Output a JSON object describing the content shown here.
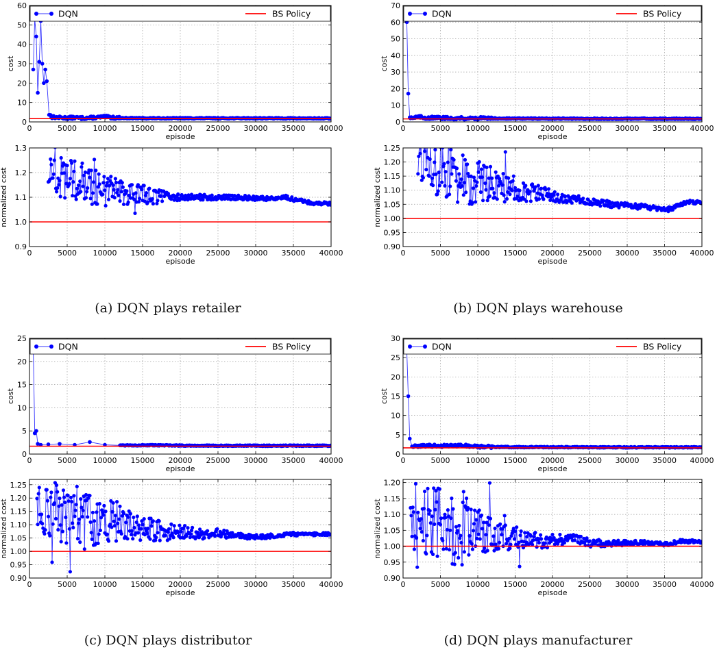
{
  "legend": {
    "dqn": "DQN",
    "bs": "BS Policy"
  },
  "colors": {
    "dqn": "#0000ff",
    "dqn_line": "#3535ff",
    "bs": "#ff0000"
  },
  "captions": [
    "(a) DQN plays retailer",
    "(b) DQN plays warehouse",
    "(c) DQN plays distributor",
    "(d) DQN plays manufacturer"
  ],
  "chart_data": [
    {
      "type": "line",
      "panel": "a-top",
      "xlabel": "episode",
      "ylabel": "cost",
      "xlim": [
        0,
        40000
      ],
      "ylim": [
        0,
        60
      ],
      "xticks": [
        "0",
        "5000",
        "10000",
        "15000",
        "20000",
        "25000",
        "30000",
        "35000",
        "40000"
      ],
      "yticks": [
        "0",
        "10",
        "20",
        "30",
        "40",
        "50",
        "60"
      ],
      "grid": true,
      "legend": "top",
      "series": [
        {
          "name": "DQN",
          "x": [
            500,
            700,
            900,
            1100,
            1300,
            1500,
            1700,
            1900,
            2100,
            2300,
            2600,
            3000,
            4000,
            5000,
            6000,
            7000,
            8000,
            10000,
            12000,
            15000,
            20000,
            25000,
            30000,
            35000,
            40000
          ],
          "y": [
            27,
            53,
            44,
            15,
            31,
            52,
            30,
            20,
            27,
            21,
            4,
            2.5,
            2.2,
            2.1,
            2.2,
            2.0,
            2.1,
            2.6,
            2.0,
            1.9,
            1.9,
            1.9,
            1.9,
            1.85,
            1.8
          ]
        },
        {
          "name": "BS Policy",
          "x": [
            0,
            40000
          ],
          "y": [
            1.7,
            1.7
          ]
        }
      ]
    },
    {
      "type": "line",
      "panel": "a-bottom",
      "xlabel": "episode",
      "ylabel": "normalized cost",
      "xlim": [
        0,
        40000
      ],
      "ylim": [
        0.9,
        1.3
      ],
      "xticks": [
        "0",
        "5000",
        "10000",
        "15000",
        "20000",
        "25000",
        "30000",
        "35000",
        "40000"
      ],
      "yticks": [
        "0.9",
        "1.0",
        "1.1",
        "1.2",
        "1.3"
      ],
      "grid": true,
      "series": [
        {
          "name": "DQN",
          "x": [
            2500,
            4000,
            6000,
            8000,
            10000,
            12000,
            15000,
            18000,
            20000,
            22000,
            25000,
            28000,
            30000,
            32000,
            34000,
            36000,
            38000,
            40000
          ],
          "y": [
            1.2,
            1.18,
            1.17,
            1.15,
            1.13,
            1.12,
            1.11,
            1.1,
            1.1,
            1.1,
            1.1,
            1.1,
            1.095,
            1.095,
            1.1,
            1.085,
            1.075,
            1.075
          ]
        },
        {
          "name": "BS Policy",
          "x": [
            0,
            40000
          ],
          "y": [
            1.0,
            1.0
          ]
        }
      ]
    },
    {
      "type": "line",
      "panel": "b-top",
      "xlabel": "episode",
      "ylabel": "cost",
      "xlim": [
        0,
        40000
      ],
      "ylim": [
        0,
        70
      ],
      "xticks": [
        "0",
        "5000",
        "10000",
        "15000",
        "20000",
        "25000",
        "30000",
        "35000",
        "40000"
      ],
      "yticks": [
        "0",
        "10",
        "20",
        "30",
        "40",
        "50",
        "60",
        "70"
      ],
      "grid": true,
      "legend": "top",
      "series": [
        {
          "name": "DQN",
          "x": [
            500,
            700,
            900,
            1300,
            2000,
            3000,
            5000,
            7000,
            10000,
            15000,
            20000,
            25000,
            30000,
            35000,
            40000
          ],
          "y": [
            60,
            17,
            3,
            2.5,
            3,
            2.5,
            2.4,
            2.2,
            2.2,
            2.0,
            2.0,
            1.9,
            1.9,
            1.9,
            1.9
          ]
        },
        {
          "name": "BS Policy",
          "x": [
            0,
            40000
          ],
          "y": [
            1.8,
            1.8
          ]
        }
      ]
    },
    {
      "type": "line",
      "panel": "b-bottom",
      "xlabel": "episode",
      "ylabel": "normalized cost",
      "xlim": [
        0,
        40000
      ],
      "ylim": [
        0.9,
        1.25
      ],
      "xticks": [
        "0",
        "5000",
        "10000",
        "15000",
        "20000",
        "25000",
        "30000",
        "35000",
        "40000"
      ],
      "yticks": [
        "0.90",
        "0.95",
        "1.00",
        "1.05",
        "1.10",
        "1.15",
        "1.20",
        "1.25"
      ],
      "grid": true,
      "series": [
        {
          "name": "DQN",
          "x": [
            2000,
            4000,
            6000,
            8000,
            10000,
            12000,
            14000,
            16000,
            18000,
            20000,
            22000,
            25000,
            28000,
            30000,
            33000,
            35000,
            36000,
            38000,
            40000
          ],
          "y": [
            1.18,
            1.17,
            1.16,
            1.14,
            1.13,
            1.12,
            1.11,
            1.1,
            1.09,
            1.08,
            1.07,
            1.06,
            1.05,
            1.045,
            1.04,
            1.03,
            1.035,
            1.06,
            1.055
          ]
        },
        {
          "name": "BS Policy",
          "x": [
            0,
            40000
          ],
          "y": [
            1.0,
            1.0
          ]
        }
      ]
    },
    {
      "type": "line",
      "panel": "c-top",
      "xlabel": "episode",
      "ylabel": "cost",
      "xlim": [
        0,
        40000
      ],
      "ylim": [
        0,
        25
      ],
      "xticks": [
        "0",
        "5000",
        "10000",
        "15000",
        "20000",
        "25000",
        "30000",
        "35000",
        "40000"
      ],
      "yticks": [
        "0",
        "5",
        "10",
        "15",
        "20",
        "25"
      ],
      "grid": true,
      "legend": "top",
      "series": [
        {
          "name": "DQN",
          "x": [
            500,
            700,
            900,
            1100,
            1500,
            2500,
            4000,
            6000,
            8000,
            10000,
            12000,
            15000,
            20000,
            25000,
            30000,
            35000,
            40000
          ],
          "y": [
            23,
            4.5,
            5,
            2.2,
            2.0,
            2.1,
            2.2,
            2.0,
            2.6,
            2.0,
            1.9,
            1.9,
            1.85,
            1.8,
            1.8,
            1.8,
            1.8
          ]
        },
        {
          "name": "BS Policy",
          "x": [
            0,
            40000
          ],
          "y": [
            1.7,
            1.7
          ]
        }
      ]
    },
    {
      "type": "line",
      "panel": "c-bottom",
      "xlabel": "episode",
      "ylabel": "normalized cost",
      "xlim": [
        0,
        40000
      ],
      "ylim": [
        0.9,
        1.27
      ],
      "xticks": [
        "0",
        "5000",
        "10000",
        "15000",
        "20000",
        "25000",
        "30000",
        "35000",
        "40000"
      ],
      "yticks": [
        "0.90",
        "0.95",
        "1.00",
        "1.05",
        "1.10",
        "1.15",
        "1.20",
        "1.25"
      ],
      "grid": true,
      "series": [
        {
          "name": "DQN",
          "x": [
            1000,
            3000,
            5000,
            7000,
            9000,
            11000,
            13000,
            15000,
            17000,
            19000,
            21000,
            23000,
            25000,
            27000,
            29000,
            31000,
            33000,
            35000,
            37000,
            40000
          ],
          "y": [
            1.2,
            1.16,
            1.14,
            1.13,
            1.12,
            1.12,
            1.1,
            1.09,
            1.08,
            1.075,
            1.07,
            1.065,
            1.07,
            1.06,
            1.055,
            1.055,
            1.06,
            1.065,
            1.065,
            1.065
          ]
        },
        {
          "name": "BS Policy",
          "x": [
            0,
            40000
          ],
          "y": [
            1.0,
            1.0
          ]
        }
      ]
    },
    {
      "type": "line",
      "panel": "d-top",
      "xlabel": "episode",
      "ylabel": "cost",
      "xlim": [
        0,
        40000
      ],
      "ylim": [
        0,
        30
      ],
      "xticks": [
        "0",
        "5000",
        "10000",
        "15000",
        "20000",
        "25000",
        "30000",
        "35000",
        "40000"
      ],
      "yticks": [
        "0",
        "5",
        "10",
        "15",
        "20",
        "25",
        "30"
      ],
      "grid": true,
      "legend": "top",
      "series": [
        {
          "name": "DQN",
          "x": [
            500,
            700,
            900,
            1200,
            2000,
            3000,
            5000,
            8000,
            10000,
            15000,
            20000,
            25000,
            30000,
            35000,
            40000
          ],
          "y": [
            26.5,
            15,
            4,
            2.0,
            2.0,
            2.2,
            2.1,
            2.2,
            1.9,
            1.8,
            1.8,
            1.75,
            1.75,
            1.75,
            1.75
          ]
        },
        {
          "name": "BS Policy",
          "x": [
            0,
            40000
          ],
          "y": [
            1.6,
            1.6
          ]
        }
      ]
    },
    {
      "type": "line",
      "panel": "d-bottom",
      "xlabel": "episode",
      "ylabel": "normalized cost",
      "xlim": [
        0,
        40000
      ],
      "ylim": [
        0.9,
        1.21
      ],
      "xticks": [
        "0",
        "5000",
        "10000",
        "15000",
        "20000",
        "25000",
        "30000",
        "35000",
        "40000"
      ],
      "yticks": [
        "0.90",
        "0.95",
        "1.00",
        "1.05",
        "1.10",
        "1.15",
        "1.20"
      ],
      "grid": true,
      "series": [
        {
          "name": "DQN",
          "x": [
            1000,
            3000,
            5000,
            7000,
            9000,
            11000,
            13000,
            15000,
            17000,
            19000,
            21000,
            23000,
            25000,
            27000,
            29000,
            31000,
            33000,
            35000,
            37000,
            40000
          ],
          "y": [
            1.1,
            1.07,
            1.07,
            1.06,
            1.05,
            1.04,
            1.03,
            1.03,
            1.02,
            1.015,
            1.02,
            1.025,
            1.01,
            1.01,
            1.01,
            1.01,
            1.01,
            1.005,
            1.015,
            1.015
          ]
        },
        {
          "name": "BS Policy",
          "x": [
            0,
            40000
          ],
          "y": [
            1.0,
            1.0
          ]
        }
      ]
    }
  ]
}
